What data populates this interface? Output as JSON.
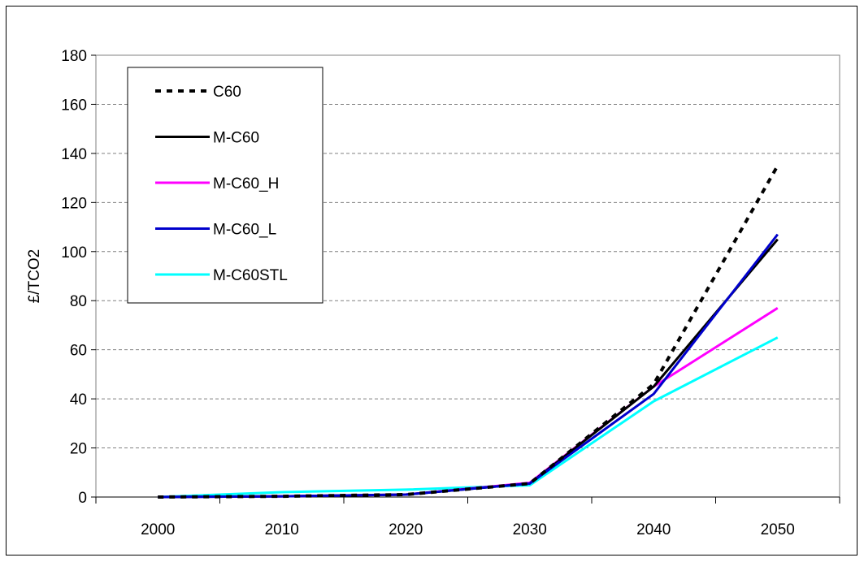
{
  "chart_data": {
    "type": "line",
    "title": "",
    "xlabel": "",
    "ylabel": "£/TCO2",
    "categories": [
      "2000",
      "2010",
      "2020",
      "2030",
      "2040",
      "2050"
    ],
    "ylim": [
      0,
      180
    ],
    "yticks": [
      0,
      20,
      40,
      60,
      80,
      100,
      120,
      140,
      160,
      180
    ],
    "grid": "horizontal dashed",
    "legend_position": "top-left",
    "series": [
      {
        "name": "C60",
        "color": "#000000",
        "style": "dotted",
        "values": [
          0,
          0.3,
          1.0,
          5.5,
          46,
          135
        ]
      },
      {
        "name": "M-C60",
        "color": "#000000",
        "style": "solid",
        "values": [
          0,
          0.3,
          1.0,
          5.5,
          45,
          105
        ]
      },
      {
        "name": "M-C60_H",
        "color": "#ff00ff",
        "style": "solid",
        "values": [
          0,
          0.3,
          1.0,
          5.8,
          45,
          77
        ]
      },
      {
        "name": "M-C60_L",
        "color": "#0000cc",
        "style": "solid",
        "values": [
          0,
          0.3,
          1.0,
          5.5,
          42,
          107
        ]
      },
      {
        "name": "M-C60STL",
        "color": "#00ffff",
        "style": "solid",
        "values": [
          0,
          2.0,
          3.0,
          4.8,
          39,
          65
        ]
      }
    ]
  }
}
